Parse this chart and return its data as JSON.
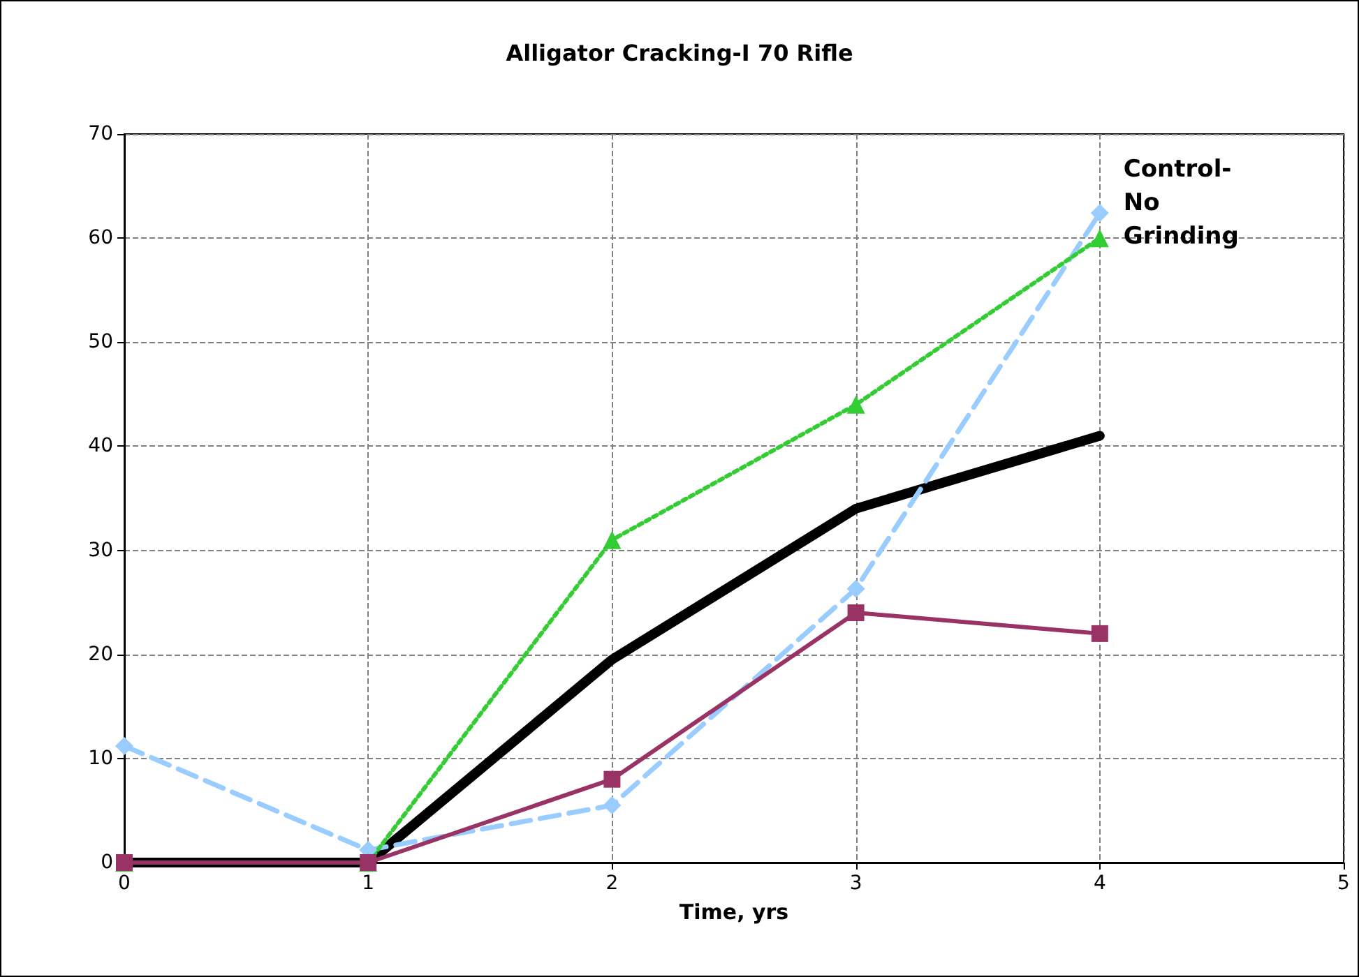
{
  "chart_data": {
    "type": "line",
    "title": "Alligator Cracking-I 70 Rifle",
    "xlabel": "Time, yrs",
    "x": [
      0,
      1,
      2,
      3,
      4
    ],
    "series": [
      {
        "color": "#99ccff",
        "marker": "diamond",
        "line_style": "dashed",
        "values": [
          11.2,
          1.2,
          5.5,
          26.3,
          62.4
        ]
      },
      {
        "color": "#33cc33",
        "marker": "triangle",
        "line_style": "dotted",
        "values": [
          0,
          0,
          31,
          44,
          60
        ]
      },
      {
        "color": "#993366",
        "marker": "square",
        "line_style": "solid",
        "values": [
          0,
          0,
          8,
          24,
          22
        ]
      },
      {
        "color": "#000000",
        "marker": "none",
        "line_style": "solid",
        "values": [
          0,
          0,
          19.5,
          34,
          41
        ]
      }
    ],
    "annotations": [
      {
        "text": "Control-\nNo\nGrinding",
        "x": 4,
        "y": 62
      }
    ],
    "xlim": [
      0,
      5
    ],
    "xticks": [
      0,
      1,
      2,
      3,
      4,
      5
    ],
    "ylim": [
      0,
      70
    ],
    "yticks": [
      0,
      10,
      20,
      30,
      40,
      50,
      60,
      70
    ],
    "grid": true
  }
}
